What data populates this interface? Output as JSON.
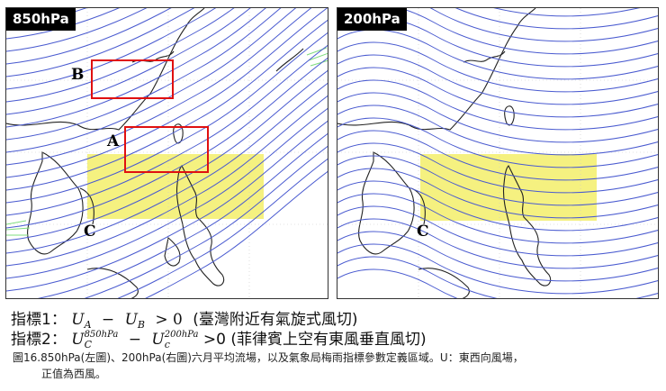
{
  "panels": {
    "left": {
      "title": "850hPa"
    },
    "right": {
      "title": "200hPa"
    }
  },
  "map_labels": {
    "box_b": "B",
    "box_a": "A",
    "left_c": "C",
    "right_c": "C"
  },
  "colors": {
    "streamline": "#4a5bd0",
    "coast": "#222222",
    "box_outline": "#e01010",
    "region_fill": "#f3ee6a",
    "wind_shading": "#7fdc7f"
  },
  "indices": {
    "index1": {
      "prefix": "指標1：",
      "u_a": "U",
      "sub_a": "A",
      "minus": "−",
      "u_b": "U",
      "sub_b": "B",
      "comparison": "> 0",
      "note": "(臺灣附近有氣旋式風切)"
    },
    "index2": {
      "prefix": "指標2：",
      "u1": "U",
      "sup1": "850hPa",
      "sub1": "C",
      "minus": "−",
      "u2": "U",
      "sup2": "200hPa",
      "sub2": "c",
      "comparison": ">0",
      "note": "(菲律賓上空有東風垂直風切)"
    }
  },
  "caption": {
    "line1": "圖16.850hPa(左圖)、200hPa(右圖)六月平均流場，以及氣象局梅雨指標參數定義區域。U：東西向風場，",
    "line2": "正值為西風。"
  }
}
